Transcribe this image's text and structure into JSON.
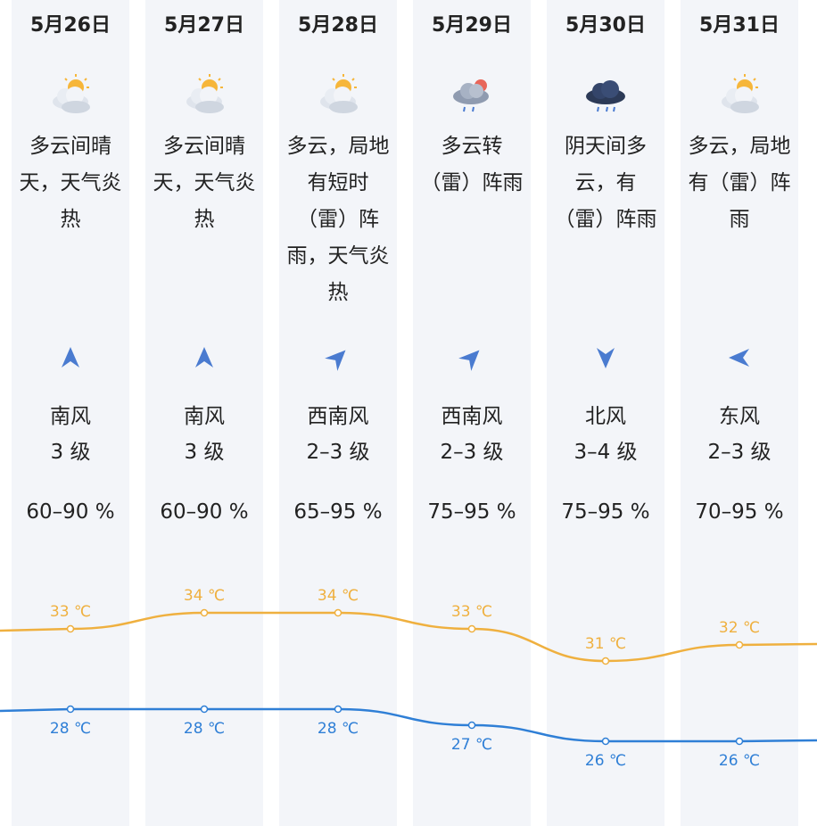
{
  "days": [
    {
      "date": "5月26日",
      "weather": "多云间晴天，天气炎热",
      "wind_dir": "南风",
      "wind_level": "3 级",
      "humidity": "60–90 %",
      "high": {
        "value": 33,
        "label": "33 ℃"
      },
      "low": {
        "value": 28,
        "label": "28 ℃"
      }
    },
    {
      "date": "5月27日",
      "weather": "多云间晴天，天气炎热",
      "wind_dir": "南风",
      "wind_level": "3 级",
      "humidity": "60–90 %",
      "high": {
        "value": 34,
        "label": "34 ℃"
      },
      "low": {
        "value": 28,
        "label": "28 ℃"
      }
    },
    {
      "date": "5月28日",
      "weather": "多云，局地有短时（雷）阵雨，天气炎热",
      "wind_dir": "西南风",
      "wind_level": "2–3 级",
      "humidity": "65–95 %",
      "high": {
        "value": 34,
        "label": "34 ℃"
      },
      "low": {
        "value": 28,
        "label": "28 ℃"
      }
    },
    {
      "date": "5月29日",
      "weather": "多云转（雷）阵雨",
      "wind_dir": "西南风",
      "wind_level": "2–3 级",
      "humidity": "75–95 %",
      "high": {
        "value": 33,
        "label": "33 ℃"
      },
      "low": {
        "value": 27,
        "label": "27 ℃"
      }
    },
    {
      "date": "5月30日",
      "weather": "阴天间多云，有（雷）阵雨",
      "wind_dir": "北风",
      "wind_level": "3–4 级",
      "humidity": "75–95 %",
      "high": {
        "value": 31,
        "label": "31 ℃"
      },
      "low": {
        "value": 26,
        "label": "26 ℃"
      }
    },
    {
      "date": "5月31日",
      "weather": "多云，局地有（雷）阵雨",
      "wind_dir": "东风",
      "wind_level": "2–3 级",
      "humidity": "70–95 %",
      "high": {
        "value": 32,
        "label": "32 ℃"
      },
      "low": {
        "value": 26,
        "label": "26 ℃"
      }
    }
  ]
}
